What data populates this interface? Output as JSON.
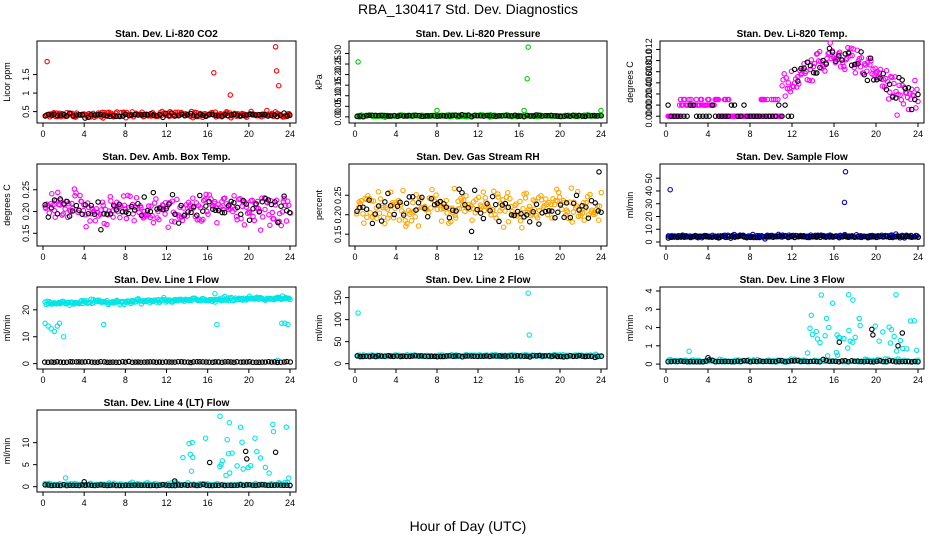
{
  "figure": {
    "title": "RBA_130417  Std. Dev. Diagnostics",
    "xlabel": "Hour of Day (UTC)"
  },
  "chart_data": [
    {
      "type": "scatter",
      "title": "Stan. Dev. Li-820 CO2",
      "ylabel": "Licor ppm",
      "xlim": [
        0,
        24
      ],
      "ylim": [
        0.3,
        2.3
      ],
      "xticks": [
        0,
        4,
        8,
        12,
        16,
        20,
        24
      ],
      "yticks": [
        0.5,
        1.0,
        1.5
      ],
      "yticklabels": [
        "0.5",
        "1",
        "1.5"
      ],
      "series": [
        {
          "color": "#ff0000",
          "base": 0.42,
          "noise": 0.07,
          "x_outliers": [
            0.4,
            16.6,
            18.2,
            22.6,
            22.7,
            22.9
          ],
          "y_outliers": [
            1.85,
            1.55,
            0.95,
            2.25,
            1.6,
            1.2
          ]
        },
        {
          "color": "#000000",
          "base": 0.4,
          "noise": 0.04,
          "x_outliers": [],
          "y_outliers": []
        }
      ]
    },
    {
      "type": "scatter",
      "title": "Stan. Dev. Li-820 Pressure",
      "ylabel": "kPa",
      "xlim": [
        0,
        24
      ],
      "ylim": [
        -0.01,
        0.34
      ],
      "xticks": [
        0,
        4,
        8,
        12,
        16,
        20,
        24
      ],
      "yticks": [
        0.0,
        0.05,
        0.1,
        0.15,
        0.2,
        0.25,
        0.3
      ],
      "yticklabels": [
        "0.00",
        "0.05",
        "0.10",
        "0.15",
        "0.20",
        "0.25",
        "0.30"
      ],
      "series": [
        {
          "color": "#00cc00",
          "base": 0.005,
          "noise": 0.004,
          "x_outliers": [
            0.3,
            8.0,
            16.9,
            16.8,
            16.5,
            24.0
          ],
          "y_outliers": [
            0.26,
            0.03,
            0.33,
            0.18,
            0.03,
            0.03
          ]
        },
        {
          "color": "#000000",
          "base": 0.005,
          "noise": 0.003,
          "x_outliers": [],
          "y_outliers": []
        }
      ]
    },
    {
      "type": "scatter",
      "title": "Stan. Dev. Li-820 Temp.",
      "ylabel": "degrees C",
      "xlim": [
        0,
        24
      ],
      "ylim": [
        -0.0005,
        0.0128
      ],
      "xticks": [
        0,
        4,
        8,
        12,
        16,
        20,
        24
      ],
      "yticks": [
        0.0,
        0.002,
        0.004,
        0.006,
        0.008,
        0.01,
        0.012
      ],
      "yticklabels": [
        "0.000",
        "0.002",
        "0.004",
        "0.006",
        "0.008",
        "0.010",
        "0.012"
      ],
      "series": [
        {
          "color": "#ff00ff",
          "pattern": "temp"
        },
        {
          "color": "#000000",
          "pattern": "temp-black"
        }
      ]
    },
    {
      "type": "scatter",
      "title": "Stan. Dev. Amb. Box Temp.",
      "ylabel": "degrees C",
      "xlim": [
        0,
        24
      ],
      "ylim": [
        0.13,
        0.3
      ],
      "xticks": [
        0,
        4,
        8,
        12,
        16,
        20,
        24
      ],
      "yticks": [
        0.15,
        0.2,
        0.25
      ],
      "yticklabels": [
        "0.15",
        "0.20",
        "0.25"
      ],
      "series": [
        {
          "color": "#ff00ff",
          "base": 0.205,
          "noise": 0.035,
          "x_outliers": [],
          "y_outliers": []
        },
        {
          "color": "#000000",
          "base": 0.205,
          "noise": 0.03,
          "x_outliers": [],
          "y_outliers": []
        }
      ]
    },
    {
      "type": "scatter",
      "title": "Stan. Dev. Gas Stream RH",
      "ylabel": "percent",
      "xlim": [
        0,
        24
      ],
      "ylim": [
        0.13,
        0.32
      ],
      "xticks": [
        0,
        4,
        8,
        12,
        16,
        20,
        24
      ],
      "yticks": [
        0.15,
        0.2,
        0.25
      ],
      "yticklabels": [
        "0.15",
        "0.20",
        "0.25"
      ],
      "series": [
        {
          "color": "#ffa500",
          "base": 0.22,
          "noise": 0.04,
          "x_outliers": [],
          "y_outliers": []
        },
        {
          "color": "#000000",
          "base": 0.215,
          "noise": 0.035,
          "x_outliers": [
            23.8
          ],
          "y_outliers": [
            0.31
          ]
        }
      ]
    },
    {
      "type": "scatter",
      "title": "Stan. Dev. Sample Flow",
      "ylabel": "ml/min",
      "xlim": [
        0,
        24
      ],
      "ylim": [
        0,
        58
      ],
      "xticks": [
        0,
        4,
        8,
        12,
        16,
        20,
        24
      ],
      "yticks": [
        0,
        10,
        20,
        30,
        40,
        50
      ],
      "yticklabels": [
        "0",
        "10",
        "20",
        "30",
        "40",
        "50"
      ],
      "series": [
        {
          "color": "#0000cc",
          "base": 4.5,
          "noise": 1.0,
          "x_outliers": [
            0.4,
            17.1,
            17.0
          ],
          "y_outliers": [
            41,
            55,
            31
          ]
        },
        {
          "color": "#000000",
          "base": 4.0,
          "noise": 0.6,
          "x_outliers": [],
          "y_outliers": []
        }
      ]
    },
    {
      "type": "scatter",
      "title": "Stan. Dev. Line 1 Flow",
      "ylabel": "ml/min",
      "xlim": [
        0,
        24
      ],
      "ylim": [
        -0.5,
        27
      ],
      "xticks": [
        0,
        4,
        8,
        12,
        16,
        20,
        24
      ],
      "yticks": [
        0,
        10,
        20
      ],
      "yticklabels": [
        "0",
        "10",
        "20"
      ],
      "series": [
        {
          "color": "#00e5e5",
          "pattern": "line1"
        },
        {
          "color": "#000000",
          "base": 0.6,
          "noise": 0.15,
          "x_outliers": [],
          "y_outliers": []
        }
      ]
    },
    {
      "type": "scatter",
      "title": "Stan. Dev. Line 2 Flow",
      "ylabel": "ml/min",
      "xlim": [
        0,
        24
      ],
      "ylim": [
        -3,
        165
      ],
      "xticks": [
        0,
        4,
        8,
        12,
        16,
        20,
        24
      ],
      "yticks": [
        0,
        50,
        100,
        150
      ],
      "yticklabels": [
        "0",
        "50",
        "100",
        "150"
      ],
      "series": [
        {
          "color": "#00e5e5",
          "base": 18,
          "noise": 2,
          "x_outliers": [
            0.3,
            16.9,
            17.0
          ],
          "y_outliers": [
            115,
            160,
            65
          ]
        },
        {
          "color": "#000000",
          "base": 17,
          "noise": 1.5,
          "x_outliers": [],
          "y_outliers": []
        }
      ]
    },
    {
      "type": "scatter",
      "title": "Stan. Dev. Line 3 Flow",
      "ylabel": "ml/min",
      "xlim": [
        0,
        24
      ],
      "ylim": [
        -0.05,
        4.0
      ],
      "xticks": [
        0,
        4,
        8,
        12,
        16,
        20,
        24
      ],
      "yticks": [
        0,
        1,
        2,
        3,
        4
      ],
      "yticklabels": [
        "0",
        "1",
        "2",
        "3",
        "4"
      ],
      "series": [
        {
          "color": "#00e5e5",
          "pattern": "line3"
        },
        {
          "color": "#000000",
          "pattern": "line3-black"
        }
      ]
    },
    {
      "type": "scatter",
      "title": "Stan. Dev. Line 4 (LT) Flow",
      "ylabel": "ml/min",
      "xlim": [
        0,
        24
      ],
      "ylim": [
        -0.3,
        16.5
      ],
      "xticks": [
        0,
        4,
        8,
        12,
        16,
        20,
        24
      ],
      "yticks": [
        0,
        5,
        10
      ],
      "yticklabels": [
        "0",
        "5",
        "10"
      ],
      "series": [
        {
          "color": "#00e5e5",
          "pattern": "line4"
        },
        {
          "color": "#000000",
          "pattern": "line4-black"
        }
      ]
    }
  ]
}
